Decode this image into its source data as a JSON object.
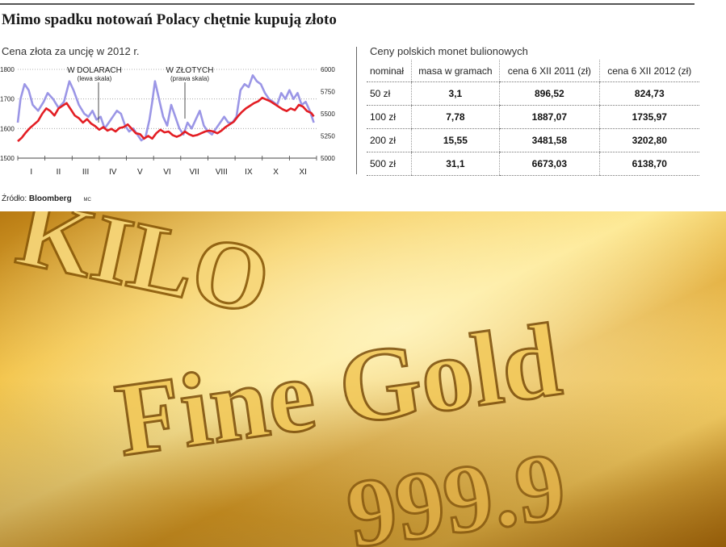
{
  "headline": "Mimo spadku notowań Polacy chętnie kupują złoto",
  "source": {
    "label": "Źródło:",
    "name": "Bloomberg",
    "author": "MC"
  },
  "chart_data": {
    "type": "line",
    "title": "Cena złota za uncję w 2012 r.",
    "x_tick_labels": [
      "I",
      "II",
      "III",
      "IV",
      "V",
      "VI",
      "VII",
      "VIII",
      "IX",
      "X",
      "XI"
    ],
    "x_range": [
      0,
      11
    ],
    "y_left_ticks": [
      "1800",
      "1700",
      "1600",
      "1500"
    ],
    "y_left_range": [
      1500,
      1800
    ],
    "y_right_ticks": [
      "6000",
      "5750",
      "5500",
      "5250",
      "5000"
    ],
    "y_right_range": [
      5000,
      6000
    ],
    "grid": "horizontal dotted",
    "series": [
      {
        "name": "W DOLARACH",
        "note": "(lewa skala)",
        "axis": "left",
        "color": "#9b96e6",
        "x": [
          0.0,
          0.1,
          0.25,
          0.4,
          0.55,
          0.75,
          0.95,
          1.1,
          1.3,
          1.5,
          1.7,
          1.9,
          2.05,
          2.25,
          2.45,
          2.6,
          2.75,
          2.9,
          3.05,
          3.2,
          3.35,
          3.5,
          3.65,
          3.8,
          3.95,
          4.1,
          4.25,
          4.4,
          4.55,
          4.7,
          4.85,
          4.95,
          5.05,
          5.2,
          5.35,
          5.5,
          5.65,
          5.8,
          5.95,
          6.1,
          6.25,
          6.4,
          6.55,
          6.7,
          6.85,
          7.0,
          7.15,
          7.3,
          7.45,
          7.6,
          7.75,
          7.9,
          8.05,
          8.2,
          8.35,
          8.5,
          8.65,
          8.8,
          8.95,
          9.1,
          9.25,
          9.4,
          9.55,
          9.7,
          9.85,
          10.0,
          10.15,
          10.3,
          10.45,
          10.6,
          10.75,
          10.9
        ],
        "values": [
          1620,
          1700,
          1750,
          1730,
          1680,
          1660,
          1690,
          1720,
          1700,
          1670,
          1690,
          1760,
          1730,
          1680,
          1650,
          1640,
          1660,
          1630,
          1640,
          1600,
          1620,
          1640,
          1660,
          1650,
          1610,
          1590,
          1600,
          1580,
          1560,
          1570,
          1630,
          1690,
          1760,
          1700,
          1640,
          1610,
          1680,
          1640,
          1600,
          1580,
          1620,
          1600,
          1630,
          1660,
          1610,
          1590,
          1580,
          1600,
          1620,
          1640,
          1620,
          1620,
          1640,
          1730,
          1750,
          1740,
          1780,
          1760,
          1750,
          1720,
          1700,
          1690,
          1680,
          1720,
          1700,
          1730,
          1700,
          1720,
          1680,
          1690,
          1660,
          1620
        ]
      },
      {
        "name": "W ZŁOTYCH",
        "note": "(prawa skala)",
        "axis": "right",
        "color": "#e31e24",
        "x": [
          0.0,
          0.15,
          0.3,
          0.45,
          0.6,
          0.75,
          0.9,
          1.05,
          1.2,
          1.35,
          1.5,
          1.65,
          1.8,
          1.95,
          2.1,
          2.25,
          2.4,
          2.55,
          2.7,
          2.85,
          3.0,
          3.15,
          3.3,
          3.45,
          3.6,
          3.75,
          3.9,
          4.05,
          4.2,
          4.35,
          4.5,
          4.65,
          4.8,
          4.95,
          5.1,
          5.25,
          5.4,
          5.55,
          5.7,
          5.85,
          6.0,
          6.15,
          6.3,
          6.45,
          6.6,
          6.75,
          6.9,
          7.05,
          7.2,
          7.35,
          7.5,
          7.65,
          7.8,
          7.95,
          8.1,
          8.25,
          8.4,
          8.55,
          8.7,
          8.85,
          9.0,
          9.15,
          9.3,
          9.45,
          9.6,
          9.75,
          9.9,
          10.05,
          10.2,
          10.35,
          10.5,
          10.65,
          10.8,
          10.9
        ],
        "values": [
          5190,
          5230,
          5290,
          5340,
          5380,
          5420,
          5500,
          5560,
          5530,
          5480,
          5560,
          5590,
          5620,
          5550,
          5480,
          5450,
          5400,
          5440,
          5390,
          5360,
          5320,
          5350,
          5310,
          5330,
          5300,
          5340,
          5350,
          5380,
          5330,
          5280,
          5270,
          5220,
          5250,
          5220,
          5280,
          5320,
          5290,
          5300,
          5260,
          5240,
          5260,
          5300,
          5270,
          5250,
          5260,
          5280,
          5300,
          5310,
          5300,
          5280,
          5310,
          5350,
          5380,
          5410,
          5470,
          5520,
          5560,
          5590,
          5620,
          5640,
          5680,
          5660,
          5640,
          5610,
          5580,
          5550,
          5530,
          5560,
          5540,
          5600,
          5580,
          5530,
          5510,
          5470
        ]
      }
    ]
  },
  "table": {
    "title": "Ceny polskich monet bulionowych",
    "headers": [
      "nominał",
      "masa w gramach",
      "cena 6 XII 2011 (zł)",
      "cena 6 XII 2012 (zł)"
    ],
    "rows": [
      [
        "50 zł",
        "3,1",
        "896,52",
        "824,73"
      ],
      [
        "100 zł",
        "7,78",
        "1887,07",
        "1735,97"
      ],
      [
        "200 zł",
        "15,55",
        "3481,58",
        "3202,80"
      ],
      [
        "500 zł",
        "31,1",
        "6673,03",
        "6138,70"
      ]
    ]
  },
  "photo": {
    "embossed_text_top": "KILO",
    "embossed_text_main": "Fine Gold",
    "embossed_text_bottom": "999.9"
  }
}
